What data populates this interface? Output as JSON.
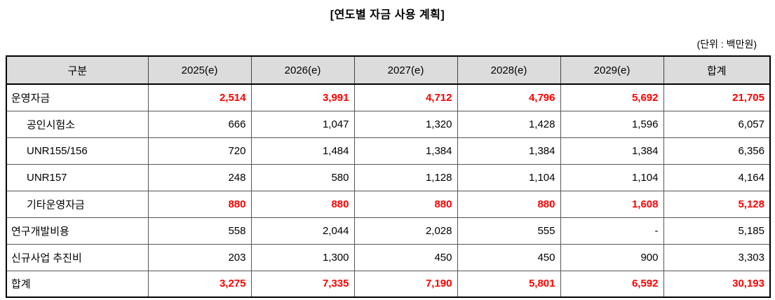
{
  "title": "[연도별 자금 사용 계획]",
  "unit_note": "(단위 : 백만원)",
  "table": {
    "header_bg": "#DCDCDC",
    "highlight_color": "#FF0000",
    "columns": [
      "구분",
      "2025(e)",
      "2026(e)",
      "2027(e)",
      "2028(e)",
      "2029(e)",
      "합계"
    ],
    "rows": [
      {
        "label": "운영자금",
        "indent": false,
        "highlight": true,
        "values": [
          "2,514",
          "3,991",
          "4,712",
          "4,796",
          "5,692",
          "21,705"
        ]
      },
      {
        "label": "공인시험소",
        "indent": true,
        "highlight": false,
        "values": [
          "666",
          "1,047",
          "1,320",
          "1,428",
          "1,596",
          "6,057"
        ]
      },
      {
        "label": "UNR155/156",
        "indent": true,
        "highlight": false,
        "values": [
          "720",
          "1,484",
          "1,384",
          "1,384",
          "1,384",
          "6,356"
        ]
      },
      {
        "label": "UNR157",
        "indent": true,
        "highlight": false,
        "values": [
          "248",
          "580",
          "1,128",
          "1,104",
          "1,104",
          "4,164"
        ]
      },
      {
        "label": "기타운영자금",
        "indent": true,
        "highlight": true,
        "values": [
          "880",
          "880",
          "880",
          "880",
          "1,608",
          "5,128"
        ]
      },
      {
        "label": "연구개발비용",
        "indent": false,
        "highlight": false,
        "values": [
          "558",
          "2,044",
          "2,028",
          "555",
          "-",
          "5,185"
        ]
      },
      {
        "label": "신규사업 추진비",
        "indent": false,
        "highlight": false,
        "values": [
          "203",
          "1,300",
          "450",
          "450",
          "900",
          "3,303"
        ]
      },
      {
        "label": "합계",
        "indent": false,
        "highlight": true,
        "values": [
          "3,275",
          "7,335",
          "7,190",
          "5,801",
          "6,592",
          "30,193"
        ]
      }
    ]
  }
}
